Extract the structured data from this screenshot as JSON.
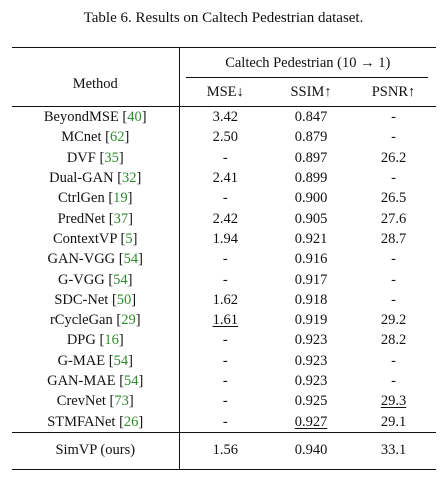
{
  "caption": "Table 6. Results on Caltech Pedestrian dataset.",
  "header": {
    "method": "Method",
    "group": "Caltech Pedestrian (10 → 1)",
    "mse": "MSE↓",
    "ssim": "SSIM↑",
    "psnr": "PSNR↑"
  },
  "rows": [
    {
      "name": "BeyondMSE",
      "cite": "40",
      "mse": "3.42",
      "ssim": "0.847",
      "psnr": "-"
    },
    {
      "name": "MCnet",
      "cite": "62",
      "mse": "2.50",
      "ssim": "0.879",
      "psnr": "-"
    },
    {
      "name": "DVF",
      "cite": "35",
      "mse": "-",
      "ssim": "0.897",
      "psnr": "26.2"
    },
    {
      "name": "Dual-GAN",
      "cite": "32",
      "mse": "2.41",
      "ssim": "0.899",
      "psnr": "-"
    },
    {
      "name": "CtrlGen",
      "cite": "19",
      "mse": "-",
      "ssim": "0.900",
      "psnr": "26.5"
    },
    {
      "name": "PredNet",
      "cite": "37",
      "mse": "2.42",
      "ssim": "0.905",
      "psnr": "27.6"
    },
    {
      "name": "ContextVP",
      "cite": "5",
      "mse": "1.94",
      "ssim": "0.921",
      "psnr": "28.7"
    },
    {
      "name": "GAN-VGG",
      "cite": "54",
      "mse": "-",
      "ssim": "0.916",
      "psnr": "-"
    },
    {
      "name": "G-VGG",
      "cite": "54",
      "mse": "-",
      "ssim": "0.917",
      "psnr": "-"
    },
    {
      "name": "SDC-Net",
      "cite": "50",
      "mse": "1.62",
      "ssim": "0.918",
      "psnr": "-"
    },
    {
      "name": "rCycleGan",
      "cite": "29",
      "mse": "1.61",
      "ssim": "0.919",
      "psnr": "29.2"
    },
    {
      "name": "DPG",
      "cite": "16",
      "mse": "-",
      "ssim": "0.923",
      "psnr": "28.2"
    },
    {
      "name": "G-MAE",
      "cite": "54",
      "mse": "-",
      "ssim": "0.923",
      "psnr": "-"
    },
    {
      "name": "GAN-MAE",
      "cite": "54",
      "mse": "-",
      "ssim": "0.923",
      "psnr": "-"
    },
    {
      "name": "CrevNet",
      "cite": "73",
      "mse": "-",
      "ssim": "0.925",
      "psnr": "29.3"
    },
    {
      "name": "STMFANet",
      "cite": "26",
      "mse": "-",
      "ssim": "0.927",
      "psnr": "29.1"
    }
  ],
  "ours": {
    "name": "SimVP (ours)",
    "mse": "1.56",
    "ssim": "0.940",
    "psnr": "33.1"
  }
}
